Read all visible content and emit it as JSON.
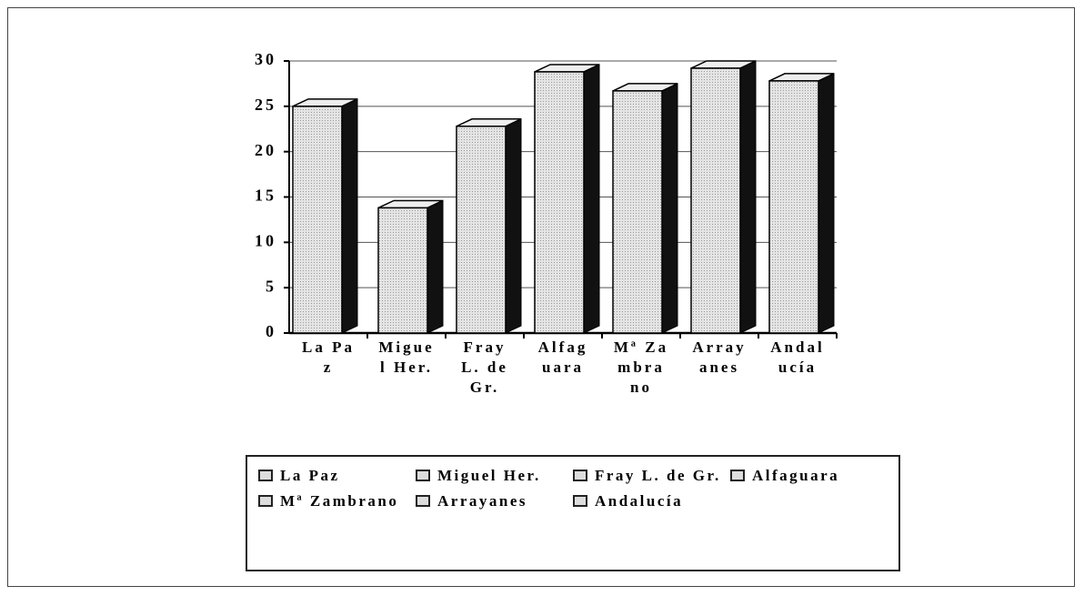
{
  "chart_data": {
    "type": "bar3d",
    "categories": [
      "La Paz",
      "Miguel Her.",
      "Fray L. de Gr.",
      "Alfaguara",
      "Mª Zambrano",
      "Arrayanes",
      "Andalucía"
    ],
    "values": [
      25,
      13.8,
      22.8,
      28.8,
      26.7,
      29.2,
      27.8
    ],
    "color": "#e4e4e4",
    "ylim": [
      0,
      30
    ],
    "yticks": [
      0,
      5,
      10,
      15,
      20,
      25,
      30
    ],
    "grid": true,
    "legend": "bottom"
  }
}
